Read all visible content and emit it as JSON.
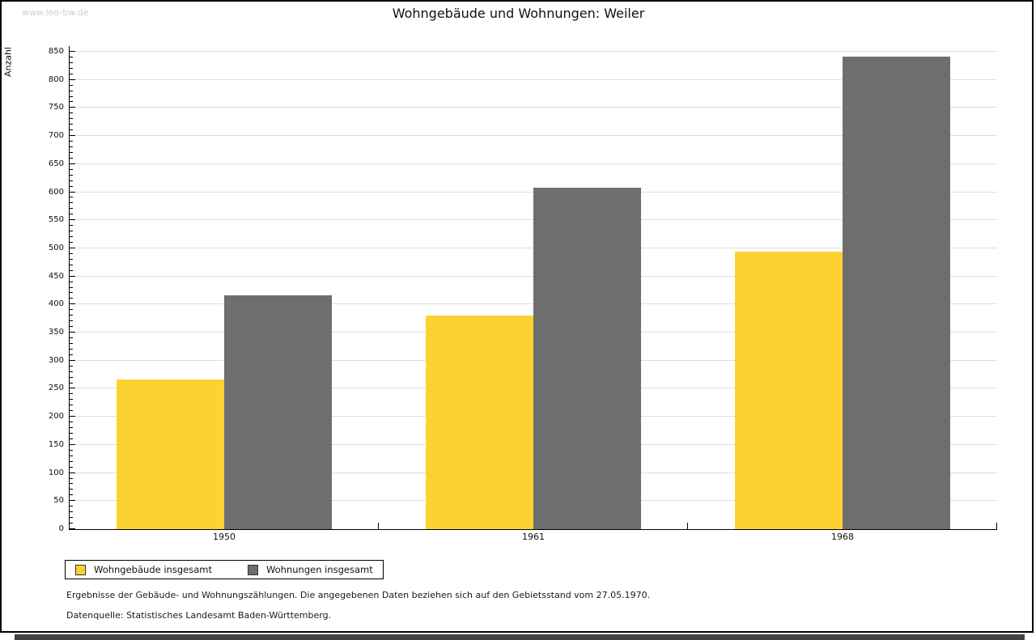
{
  "window": {
    "watermark": "www.leo-bw.de",
    "footnote_line1": "Ergebnisse der Gebäude- und Wohnungszählungen. Die angegebenen Daten beziehen sich auf den Gebietsstand vom 27.05.1970.",
    "footnote_line2": "Datenquelle: Statistisches Landesamt Baden-Württemberg."
  },
  "chart_data": {
    "type": "bar",
    "title": "Wohngebäude und Wohnungen: Weiler",
    "xlabel": "",
    "ylabel": "Anzahl",
    "categories": [
      "1950",
      "1961",
      "1968"
    ],
    "series": [
      {
        "name": "Wohngebäude insgesamt",
        "color": "#fcd233",
        "values": [
          267,
          380,
          494
        ]
      },
      {
        "name": "Wohnungen insgesamt",
        "color": "#6e6e6e",
        "values": [
          417,
          608,
          842
        ]
      }
    ],
    "ylim": [
      0,
      850
    ],
    "ytick_step": 50,
    "yminor_step": 10,
    "grid": true,
    "legend_position": "bottom-left",
    "colors": {
      "gridline": "#dedede",
      "axis": "#000000",
      "watermark": "#cfcfcf"
    }
  }
}
